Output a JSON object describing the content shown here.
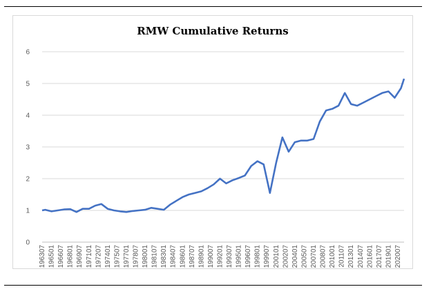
{
  "chart_data": {
    "type": "line",
    "title": "RMW Cumulative Returns",
    "xlabel": "",
    "ylabel": "",
    "ylim": [
      0,
      6
    ],
    "yticks": [
      "0",
      "1",
      "2",
      "3",
      "4",
      "5",
      "6"
    ],
    "xticks": [
      "196307",
      "196501",
      "196607",
      "196801",
      "196907",
      "197101",
      "197207",
      "197401",
      "197507",
      "197701",
      "197807",
      "198001",
      "198107",
      "198301",
      "198407",
      "198601",
      "198707",
      "198901",
      "199007",
      "199201",
      "199307",
      "199501",
      "199607",
      "199801",
      "199907",
      "200101",
      "200207",
      "200401",
      "200507",
      "200701",
      "200807",
      "201001",
      "201107",
      "201301",
      "201407",
      "201601",
      "201707",
      "201901",
      "202007"
    ],
    "grid": true,
    "legend": "none",
    "series_color": "#4472C4",
    "series": [
      {
        "x": [
          "196307",
          "196401",
          "196501",
          "196601",
          "196701",
          "196801",
          "196901",
          "197001",
          "197101",
          "197201",
          "197301",
          "197401",
          "197501",
          "197601",
          "197701",
          "197801",
          "197901",
          "198001",
          "198101",
          "198201",
          "198301",
          "198401",
          "198501",
          "198601",
          "198701",
          "198801",
          "198901",
          "199001",
          "199101",
          "199201",
          "199301",
          "199401",
          "199501",
          "199601",
          "199701",
          "199801",
          "199901",
          "200001",
          "200101",
          "200201",
          "200301",
          "200401",
          "200501",
          "200601",
          "200701",
          "200801",
          "200901",
          "201001",
          "201101",
          "201201",
          "201301",
          "201401",
          "201501",
          "201601",
          "201701",
          "201801",
          "201901",
          "202001",
          "202101",
          "202107"
        ],
        "y": [
          1.0,
          1.02,
          0.97,
          1.0,
          1.03,
          1.04,
          0.95,
          1.05,
          1.05,
          1.15,
          1.2,
          1.05,
          1.0,
          0.97,
          0.95,
          0.98,
          1.0,
          1.02,
          1.08,
          1.05,
          1.02,
          1.18,
          1.3,
          1.42,
          1.5,
          1.55,
          1.6,
          1.7,
          1.82,
          2.0,
          1.85,
          1.95,
          2.02,
          2.1,
          2.4,
          2.55,
          2.45,
          1.55,
          2.5,
          3.3,
          2.85,
          3.15,
          3.2,
          3.2,
          3.25,
          3.8,
          4.15,
          4.2,
          4.3,
          4.7,
          4.35,
          4.3,
          4.4,
          4.5,
          4.6,
          4.7,
          4.75,
          4.55,
          4.85,
          5.15
        ]
      }
    ]
  }
}
